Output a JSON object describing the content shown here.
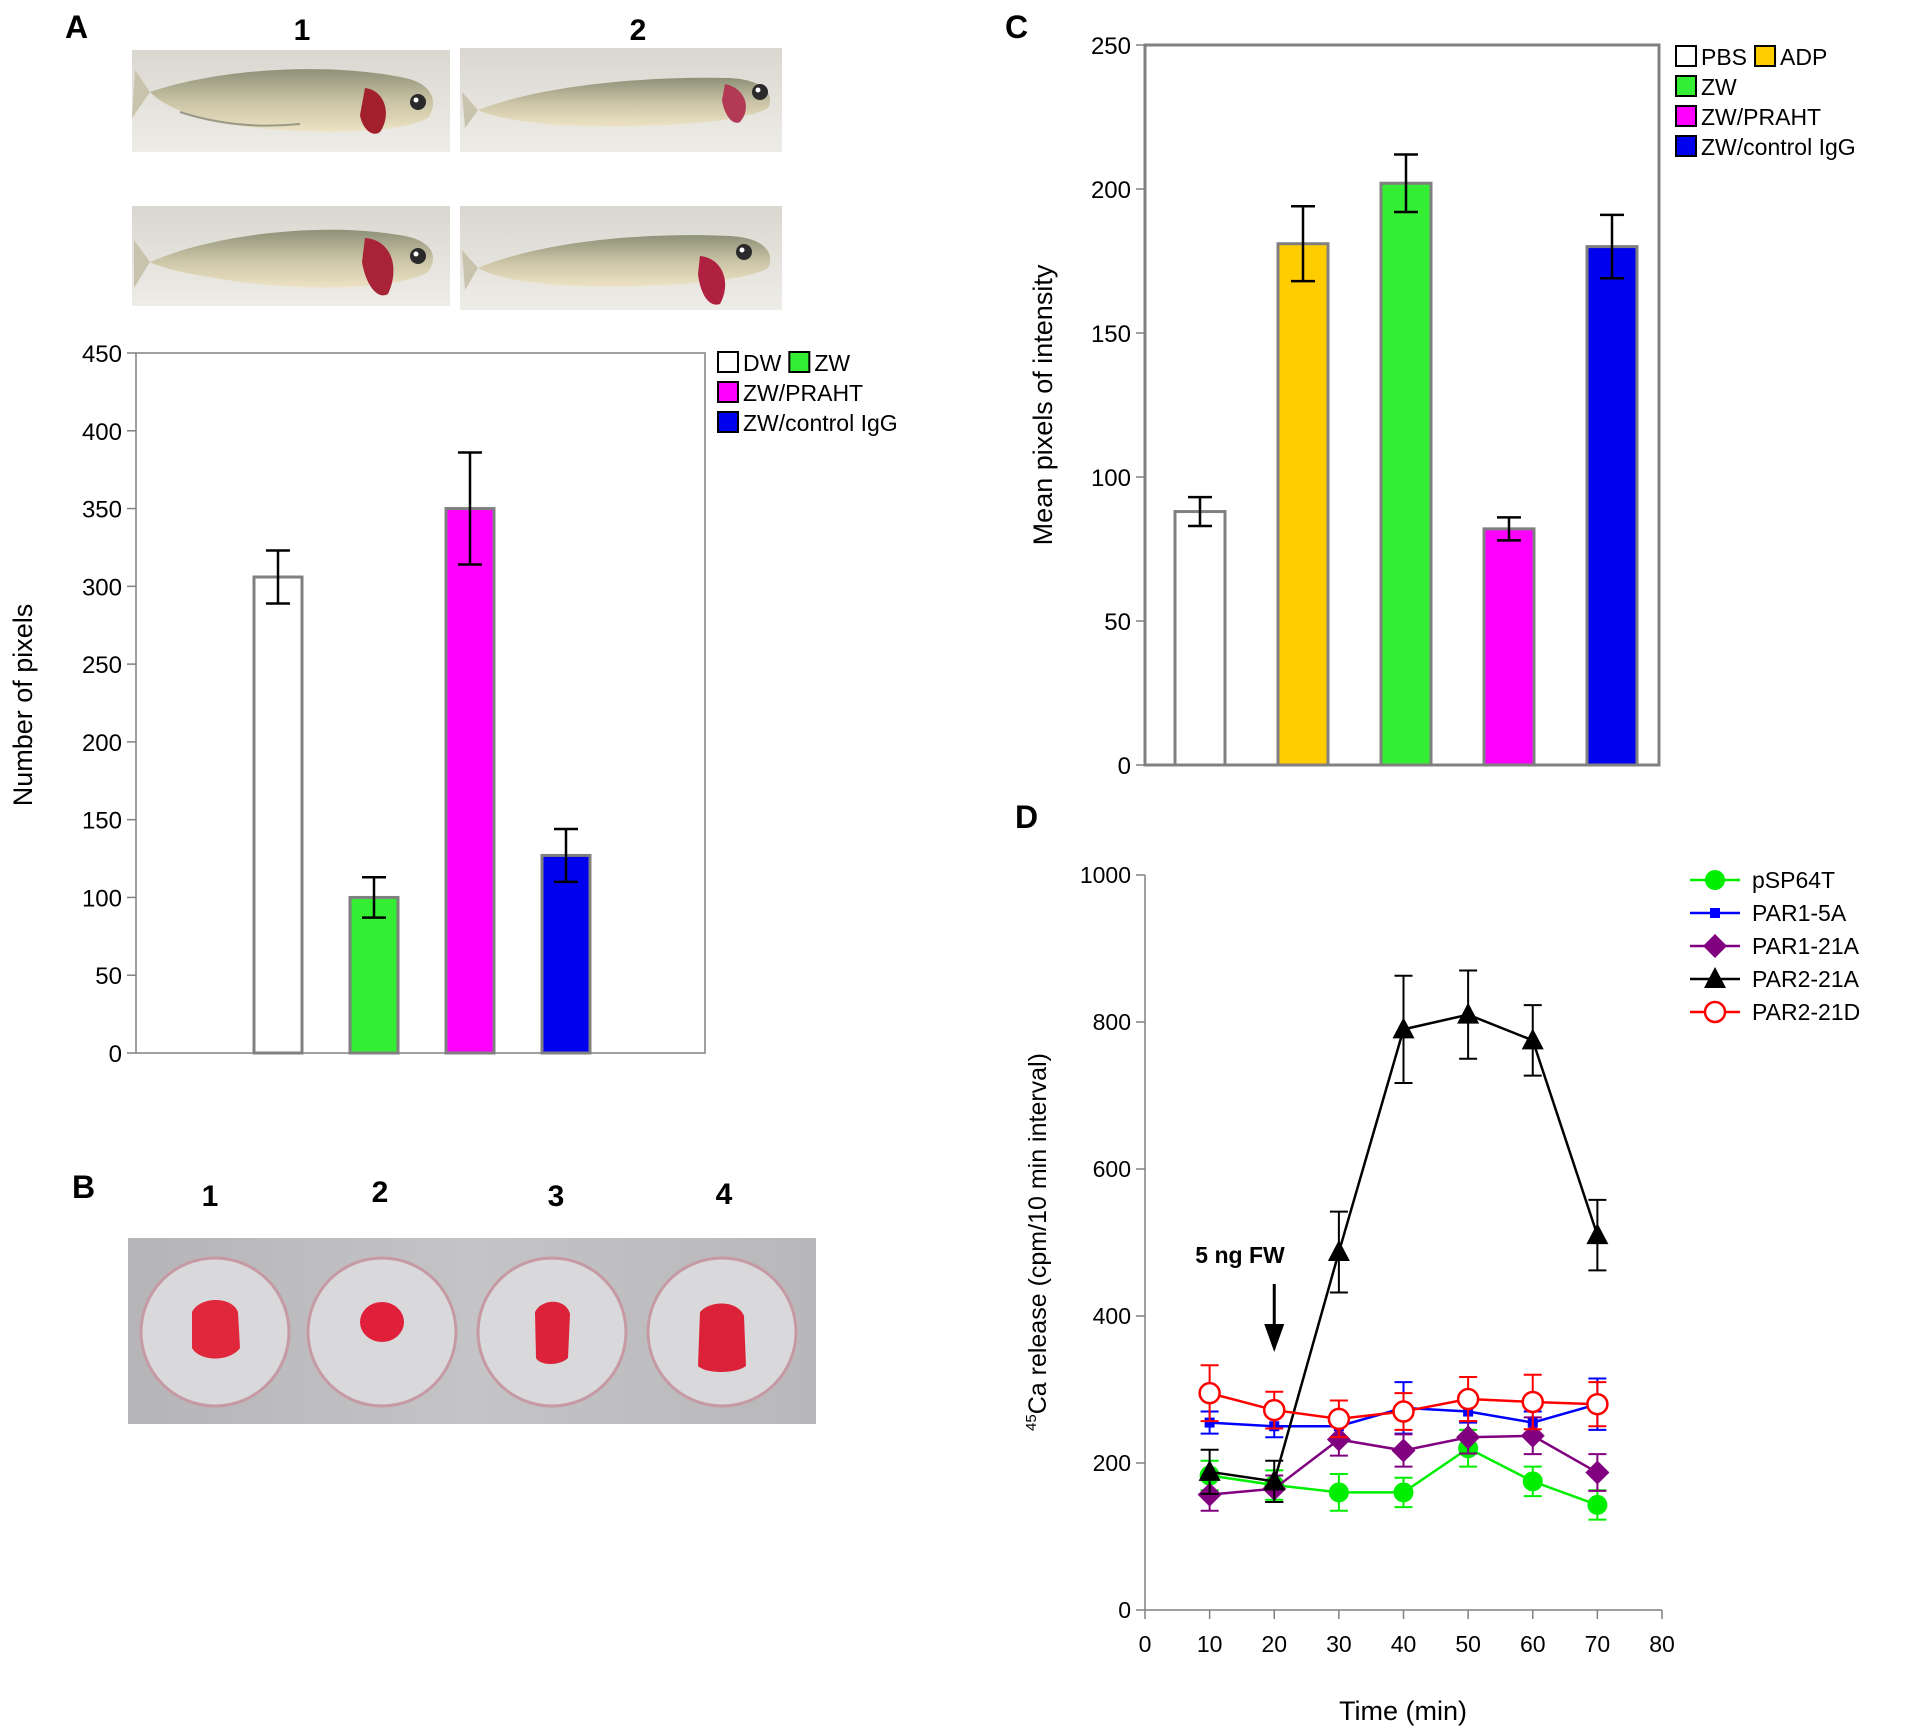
{
  "panels": {
    "A": {
      "letter": "A",
      "photo_labels": [
        "1",
        "2"
      ]
    },
    "B": {
      "letter": "B",
      "well_labels": [
        "1",
        "2",
        "3",
        "4"
      ]
    },
    "C": {
      "letter": "C"
    },
    "D": {
      "letter": "D"
    }
  },
  "colors": {
    "white": "#ffffff",
    "green": "#33ee33",
    "magenta": "#ff00ff",
    "blue": "#0000ee",
    "orange": "#ffcc00",
    "axis": "#808080",
    "black": "#000000",
    "red": "#ff0000",
    "purple": "#800080",
    "line_blue": "#0000ff",
    "line_green": "#00ee00"
  },
  "chart_data": [
    {
      "id": "A",
      "type": "bar",
      "ylabel": "Number of pixels",
      "ylim": [
        0,
        450
      ],
      "yticks": [
        0,
        50,
        100,
        150,
        200,
        250,
        300,
        350,
        400,
        450
      ],
      "categories": [
        "DW",
        "ZW",
        "ZW/PRAHT",
        "ZW/control IgG"
      ],
      "values": [
        306,
        100,
        350,
        127
      ],
      "errors": [
        17,
        13,
        36,
        17
      ],
      "fill_colors": [
        "#ffffff",
        "#33ee33",
        "#ff00ff",
        "#0000ee"
      ],
      "legend": [
        "DW",
        "ZW",
        "ZW/PRAHT",
        "ZW/control IgG"
      ],
      "legend_position": "top-right"
    },
    {
      "id": "C",
      "type": "bar",
      "ylabel": "Mean pixels of intensity",
      "ylim": [
        0,
        250
      ],
      "yticks": [
        0,
        50,
        100,
        150,
        200,
        250
      ],
      "categories": [
        "PBS",
        "ADP",
        "ZW",
        "ZW/PRAHT",
        "ZW/control IgG"
      ],
      "values": [
        88,
        181,
        202,
        82,
        180
      ],
      "errors": [
        5,
        13,
        10,
        4,
        11
      ],
      "fill_colors": [
        "#ffffff",
        "#ffcc00",
        "#33ee33",
        "#ff00ff",
        "#0000ee"
      ],
      "legend": [
        "PBS",
        "ADP",
        "ZW",
        "ZW/PRAHT",
        "ZW/control IgG"
      ],
      "legend_position": "top-right"
    },
    {
      "id": "D",
      "type": "line",
      "xlabel": "Time (min)",
      "ylabel_sup": "45",
      "ylabel": "Ca release (cpm/10 min interval)",
      "xlim": [
        0,
        80
      ],
      "ylim": [
        0,
        1000
      ],
      "xticks": [
        0,
        10,
        20,
        30,
        40,
        50,
        60,
        70,
        80
      ],
      "yticks": [
        0,
        200,
        400,
        600,
        800,
        1000
      ],
      "annotation": "5 ng FW",
      "annotation_x": 20,
      "x": [
        10,
        20,
        30,
        40,
        50,
        60,
        70
      ],
      "series": [
        {
          "name": "pSP64T",
          "color": "#00ee00",
          "marker": "circle",
          "values": [
            183,
            170,
            160,
            160,
            220,
            175,
            143
          ],
          "errors": [
            20,
            20,
            25,
            20,
            25,
            20,
            20
          ]
        },
        {
          "name": "PAR1-5A",
          "color": "#0000ff",
          "marker": "square",
          "values": [
            255,
            250,
            250,
            275,
            270,
            255,
            280
          ],
          "errors": [
            15,
            15,
            15,
            35,
            15,
            15,
            35
          ]
        },
        {
          "name": "PAR1-21A",
          "color": "#800080",
          "marker": "diamond",
          "values": [
            157,
            165,
            232,
            217,
            235,
            237,
            187
          ],
          "errors": [
            22,
            18,
            22,
            22,
            22,
            25,
            25
          ]
        },
        {
          "name": "PAR2-21A",
          "color": "#000000",
          "marker": "triangle",
          "values": [
            188,
            175,
            487,
            790,
            810,
            775,
            510
          ],
          "errors": [
            30,
            28,
            55,
            73,
            60,
            48,
            48
          ]
        },
        {
          "name": "PAR2-21D",
          "color": "#ff0000",
          "marker": "open-circle",
          "values": [
            295,
            272,
            260,
            270,
            287,
            283,
            280
          ],
          "errors": [
            38,
            25,
            25,
            25,
            30,
            37,
            30
          ]
        }
      ],
      "legend_position": "right"
    }
  ]
}
